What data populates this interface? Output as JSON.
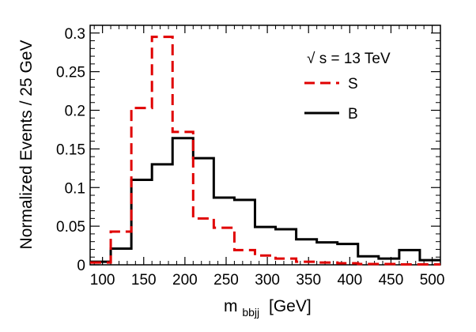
{
  "chart_data": {
    "type": "histogram",
    "title": "",
    "xlabel_main": "m",
    "xlabel_sub": "bbjj",
    "xlabel_unit": "[GeV]",
    "ylabel": "Normalized Events / 25 GeV",
    "xlim": [
      85,
      510
    ],
    "ylim": [
      0,
      0.31
    ],
    "x_ticks": [
      100,
      150,
      200,
      250,
      300,
      350,
      400,
      450,
      500
    ],
    "y_ticks": [
      0,
      0.05,
      0.1,
      0.15,
      0.2,
      0.25,
      0.3
    ],
    "x_tick_labels": [
      "100",
      "150",
      "200",
      "250",
      "300",
      "350",
      "400",
      "450",
      "500"
    ],
    "y_tick_labels": [
      "0",
      "0.05",
      "0.1",
      "0.15",
      "0.2",
      "0.25",
      "0.3"
    ],
    "annotation": "√ s = 13 TeV",
    "legend_position": "top-right",
    "bin_edges": [
      85,
      110,
      135,
      160,
      185,
      210,
      235,
      260,
      285,
      310,
      335,
      360,
      385,
      410,
      435,
      460,
      485,
      510
    ],
    "series": [
      {
        "name": "S",
        "style": "dashed",
        "color": "#e00000",
        "values": [
          0.003,
          0.043,
          0.203,
          0.295,
          0.172,
          0.06,
          0.048,
          0.019,
          0.012,
          0.008,
          0.004,
          0.003,
          0.002,
          0.001,
          0.001,
          0.0005,
          0.0005
        ]
      },
      {
        "name": "B",
        "style": "solid",
        "color": "#000000",
        "values": [
          0.004,
          0.021,
          0.11,
          0.13,
          0.164,
          0.138,
          0.087,
          0.084,
          0.049,
          0.046,
          0.033,
          0.029,
          0.027,
          0.011,
          0.008,
          0.019,
          0.006
        ]
      }
    ]
  }
}
